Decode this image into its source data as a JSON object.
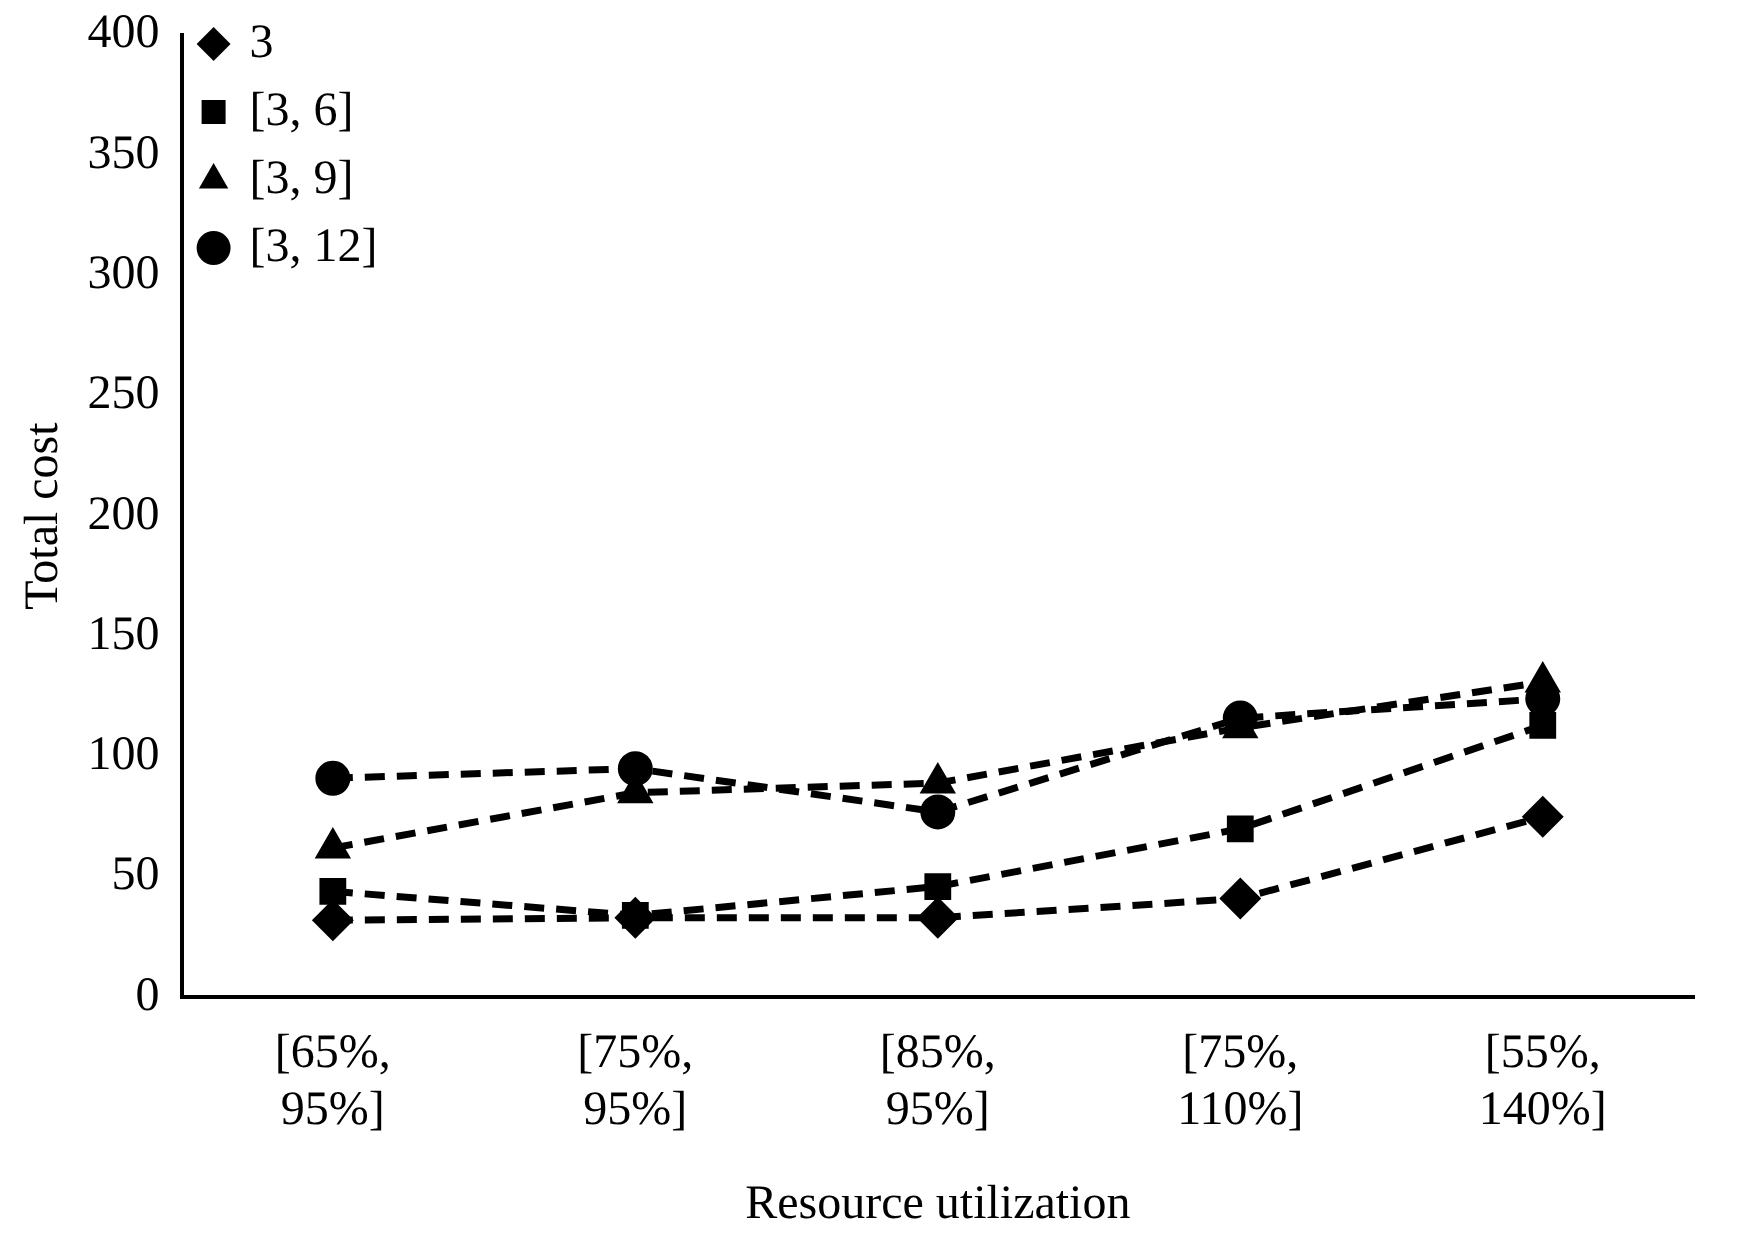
{
  "chart_data": {
    "type": "line",
    "xlabel": "Resource utilization",
    "ylabel": "Total cost",
    "categories": [
      "[65%, 95%]",
      "[75%, 95%]",
      "[85%, 95%]",
      "[75%, 110%]",
      "[55%, 140%]"
    ],
    "ylim": [
      0,
      400
    ],
    "yticks": [
      0,
      50,
      100,
      150,
      200,
      250,
      300,
      350,
      400
    ],
    "grid": false,
    "legend": "top left",
    "line_style": "dashed",
    "series": [
      {
        "name": "3",
        "color": "#000000",
        "marker": "diamond",
        "values": [
          32,
          33,
          33,
          41,
          75
        ]
      },
      {
        "name": "[3, 6]",
        "color": "#000000",
        "marker": "square",
        "values": [
          44,
          34,
          46,
          70,
          113
        ]
      },
      {
        "name": "[3, 9]",
        "color": "#000000",
        "marker": "triangle",
        "values": [
          62,
          85,
          89,
          112,
          131
        ]
      },
      {
        "name": "[3, 12]",
        "color": "#000000",
        "marker": "circle",
        "values": [
          91,
          95,
          77,
          116,
          124
        ]
      }
    ]
  }
}
